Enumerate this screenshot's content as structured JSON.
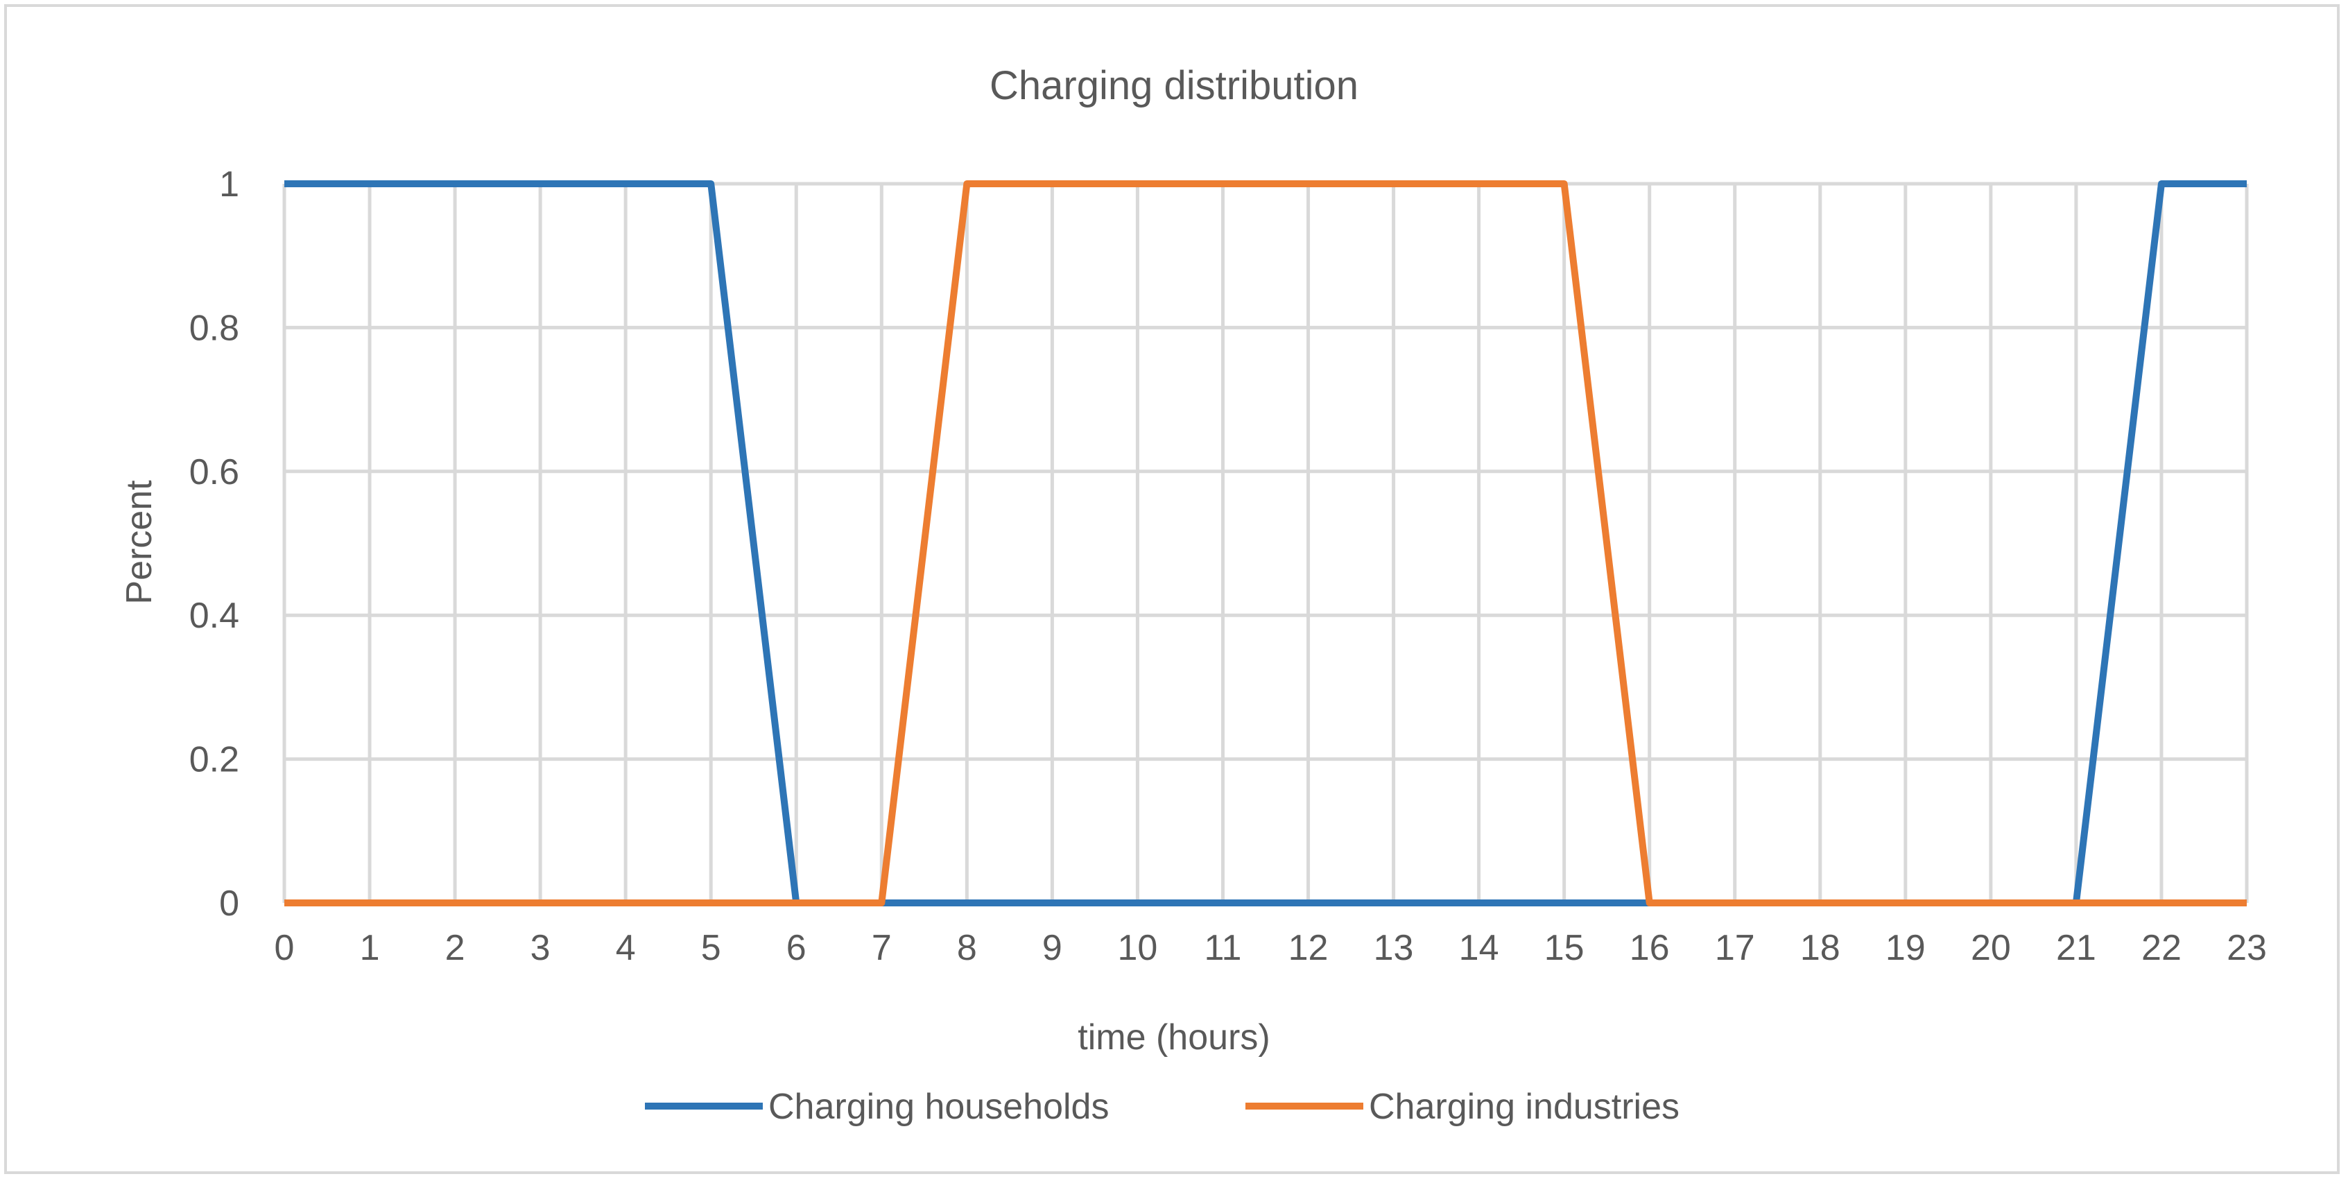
{
  "chart_data": {
    "type": "line",
    "title": "Charging distribution",
    "xlabel": "time (hours)",
    "ylabel": "Percent",
    "categories": [
      "0",
      "1",
      "2",
      "3",
      "4",
      "5",
      "6",
      "7",
      "8",
      "9",
      "10",
      "11",
      "12",
      "13",
      "14",
      "15",
      "16",
      "17",
      "18",
      "19",
      "20",
      "21",
      "22",
      "23"
    ],
    "yticks": [
      "0",
      "0.2",
      "0.4",
      "0.6",
      "0.8",
      "1"
    ],
    "ylim": [
      0,
      1
    ],
    "grid": true,
    "legend_position": "bottom",
    "series": [
      {
        "name": "Charging households",
        "color": "#2e75b6",
        "values": [
          1,
          1,
          1,
          1,
          1,
          1,
          0,
          0,
          0,
          0,
          0,
          0,
          0,
          0,
          0,
          0,
          0,
          0,
          0,
          0,
          0,
          0,
          1,
          1
        ]
      },
      {
        "name": "Charging industries",
        "color": "#ed7d31",
        "values": [
          0,
          0,
          0,
          0,
          0,
          0,
          0,
          0,
          1,
          1,
          1,
          1,
          1,
          1,
          1,
          1,
          0,
          0,
          0,
          0,
          0,
          0,
          0,
          0
        ]
      }
    ]
  }
}
